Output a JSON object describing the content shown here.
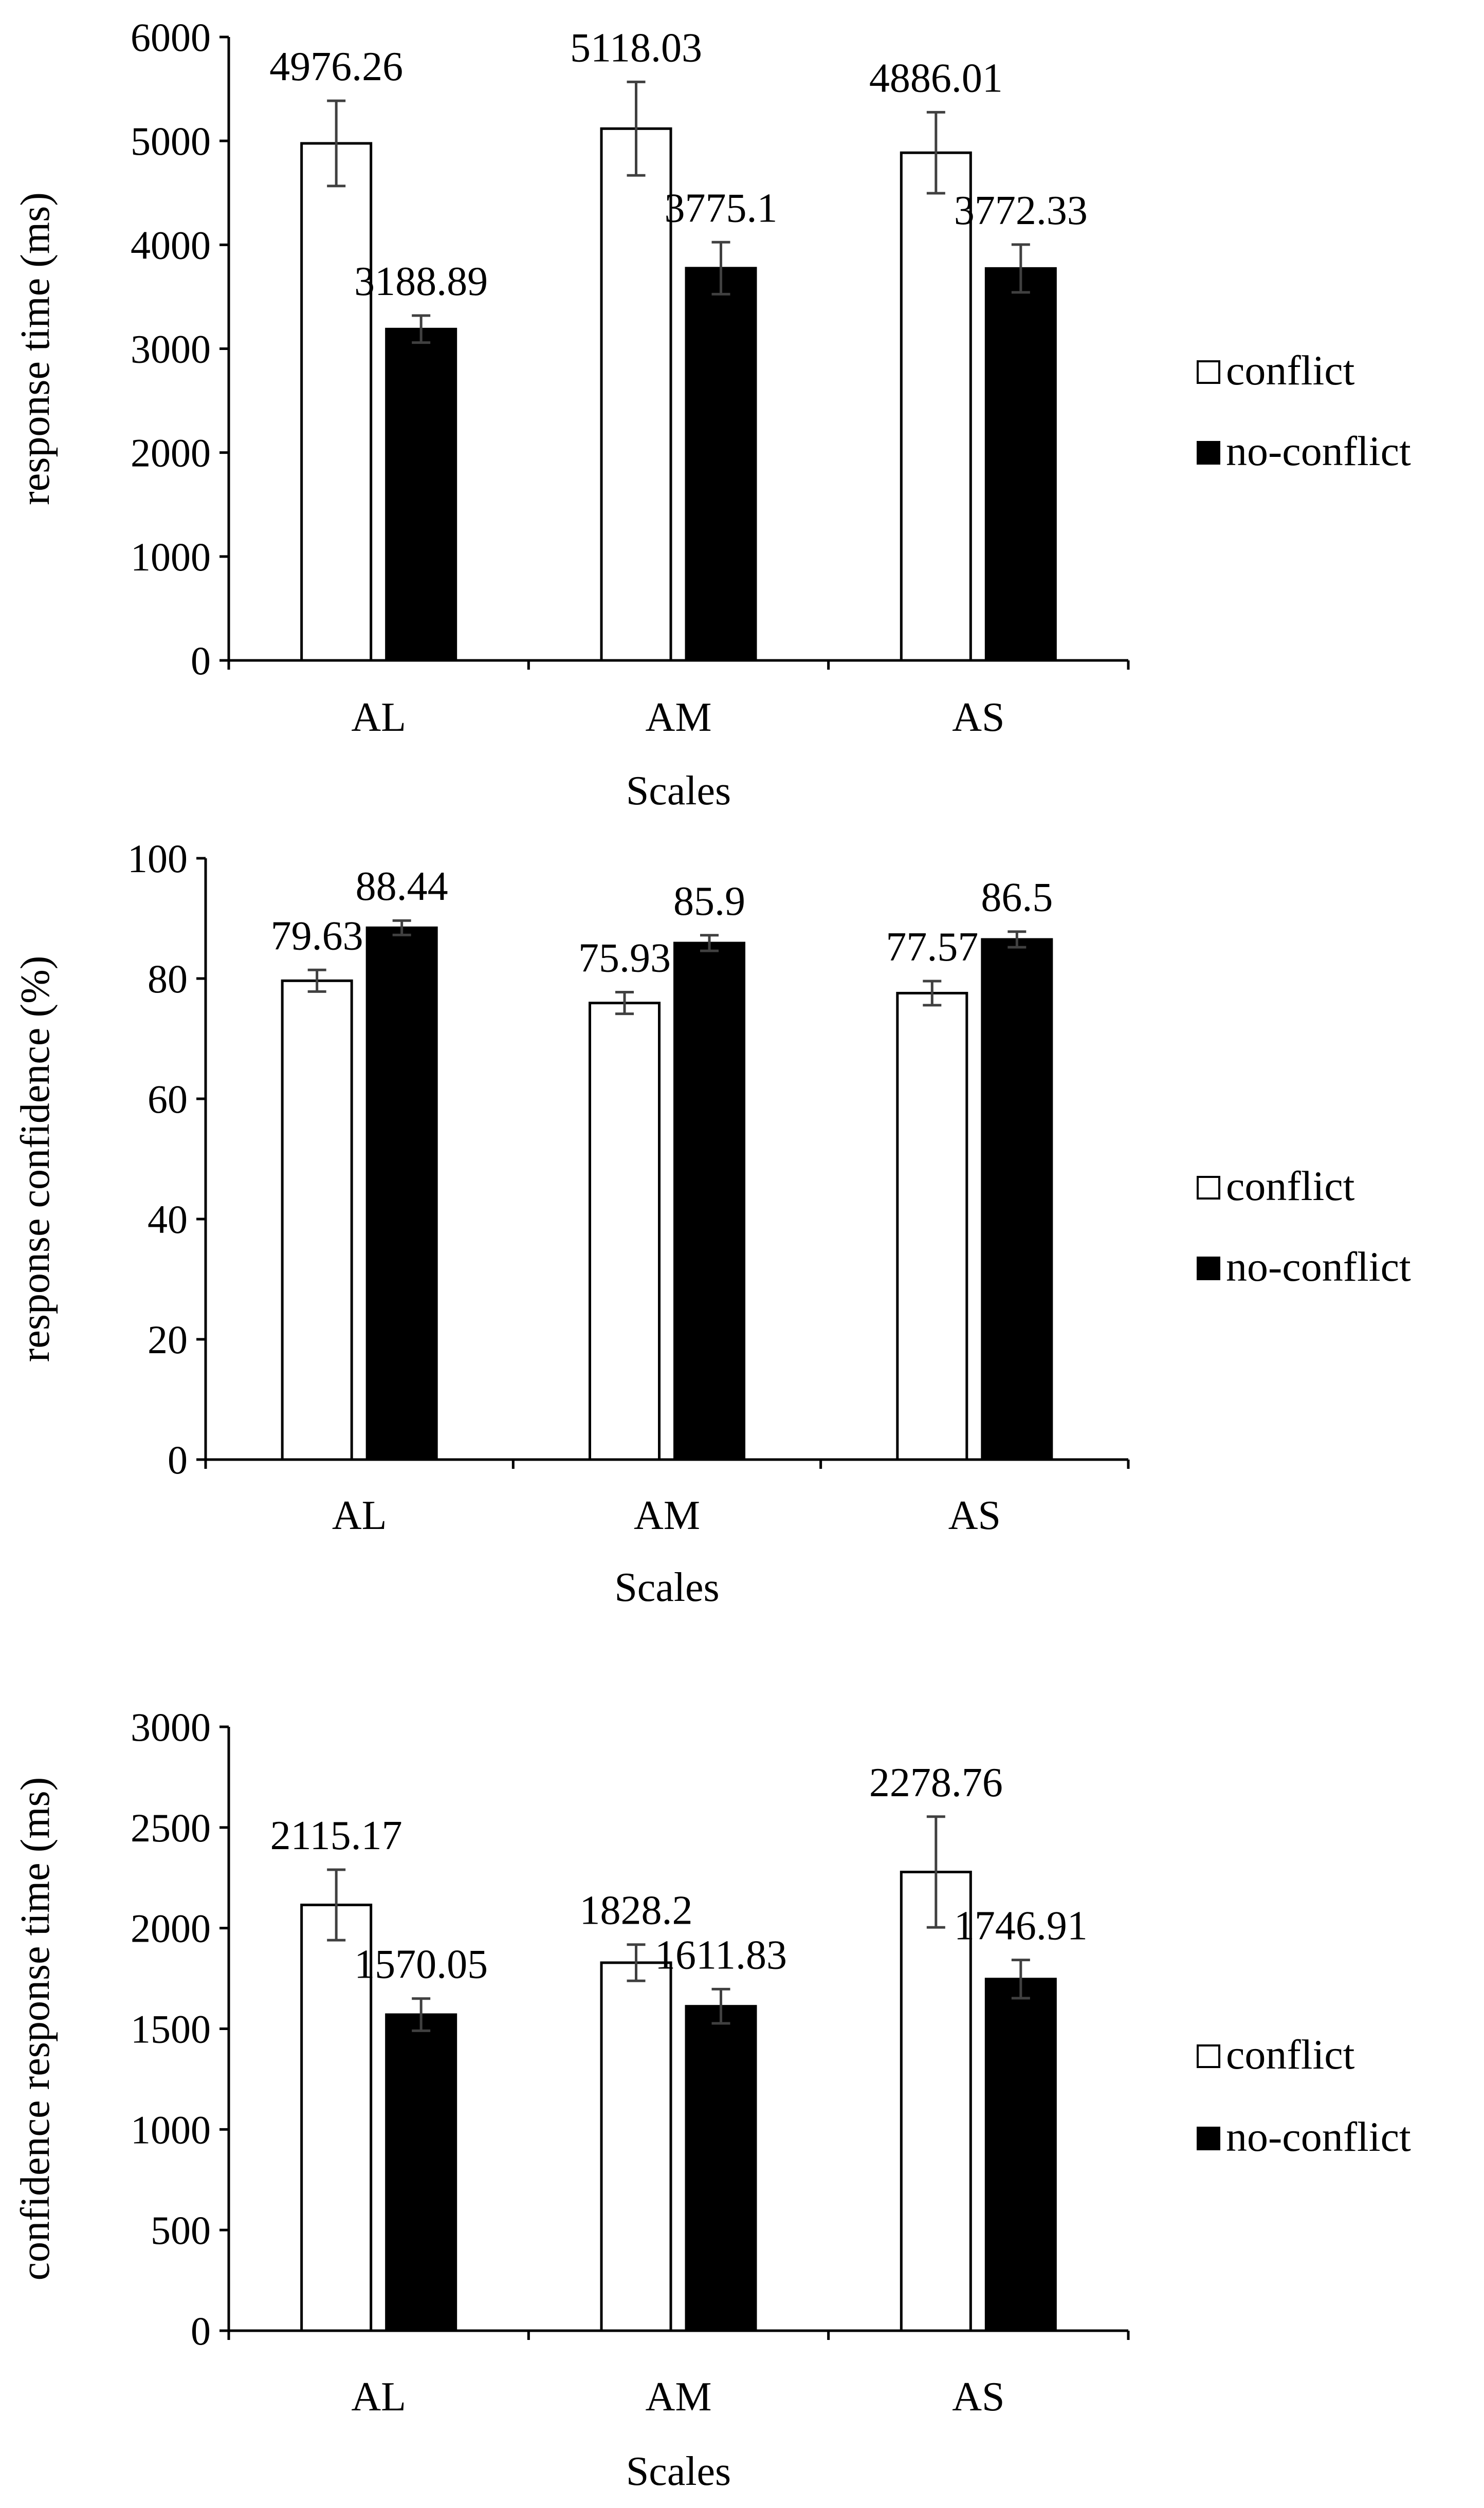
{
  "legend": {
    "items": [
      {
        "label": "conflict",
        "color": "#ffffff"
      },
      {
        "label": "no-conflict",
        "color": "#000000"
      }
    ]
  },
  "colors": {
    "conflict_fill": "#ffffff",
    "no_conflict_fill": "#000000",
    "axis": "#000000",
    "error_bar": "#404040"
  },
  "chart_data": [
    {
      "type": "bar",
      "title": "",
      "xlabel": "Scales",
      "ylabel": "response time (ms)",
      "categories": [
        "AL",
        "AM",
        "AS"
      ],
      "ylim": [
        0,
        6000
      ],
      "yticks": [
        0,
        1000,
        2000,
        3000,
        4000,
        5000,
        6000
      ],
      "legend_position": "right",
      "series": [
        {
          "name": "conflict",
          "values": [
            4976.26,
            5118.03,
            4886.01
          ],
          "labels": [
            "4976.26",
            "5118.03",
            "4886.01"
          ],
          "error": [
            410,
            450,
            390
          ]
        },
        {
          "name": "no-conflict",
          "values": [
            3188.89,
            3775.1,
            3772.33
          ],
          "labels": [
            "3188.89",
            "3775.1",
            "3772.33"
          ],
          "error": [
            130,
            250,
            230
          ]
        }
      ]
    },
    {
      "type": "bar",
      "title": "",
      "xlabel": "Scales",
      "ylabel": "response confidence (%)",
      "categories": [
        "AL",
        "AM",
        "AS"
      ],
      "ylim": [
        0,
        100
      ],
      "yticks": [
        0,
        20,
        40,
        60,
        80,
        100
      ],
      "legend_position": "right",
      "series": [
        {
          "name": "conflict",
          "values": [
            79.63,
            75.93,
            77.57
          ],
          "labels": [
            "79.63",
            "75.93",
            "77.57"
          ],
          "error": [
            1.8,
            1.8,
            2.0
          ]
        },
        {
          "name": "no-conflict",
          "values": [
            88.44,
            85.9,
            86.5
          ],
          "labels": [
            "88.44",
            "85.9",
            "86.5"
          ],
          "error": [
            1.2,
            1.3,
            1.3
          ]
        }
      ]
    },
    {
      "type": "bar",
      "title": "",
      "xlabel": "Scales",
      "ylabel": "confidence response time (ms)",
      "categories": [
        "AL",
        "AM",
        "AS"
      ],
      "ylim": [
        0,
        3000
      ],
      "yticks": [
        0,
        500,
        1000,
        1500,
        2000,
        2500,
        3000
      ],
      "legend_position": "right",
      "series": [
        {
          "name": "conflict",
          "values": [
            2115.17,
            1828.2,
            2278.76
          ],
          "labels": [
            "2115.17",
            "1828.2",
            "2278.76"
          ],
          "error": [
            175,
            90,
            275
          ]
        },
        {
          "name": "no-conflict",
          "values": [
            1570.05,
            1611.83,
            1746.91
          ],
          "labels": [
            "1570.05",
            "1611.83",
            "1746.91"
          ],
          "error": [
            80,
            85,
            95
          ]
        }
      ]
    }
  ]
}
